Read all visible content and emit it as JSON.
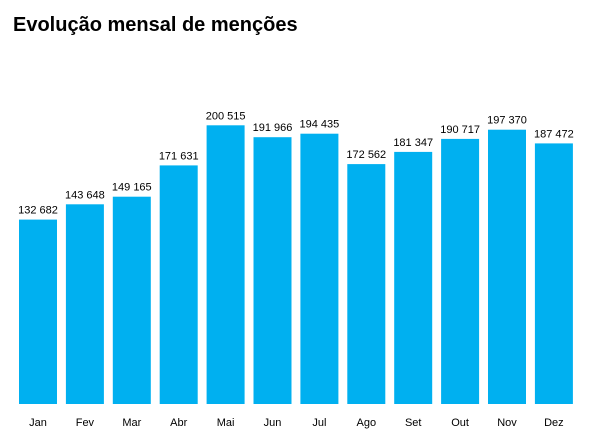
{
  "chart_data": {
    "type": "bar",
    "title": "Evolução mensal de menções",
    "categories": [
      "Jan",
      "Fev",
      "Mar",
      "Abr",
      "Mai",
      "Jun",
      "Jul",
      "Ago",
      "Set",
      "Out",
      "Nov",
      "Dez"
    ],
    "values": [
      132682,
      143648,
      149165,
      171631,
      200515,
      191966,
      194435,
      172562,
      181347,
      190717,
      197370,
      187472
    ],
    "value_labels": [
      "132 682",
      "143 648",
      "149 165",
      "171 631",
      "200 515",
      "191 966",
      "194 435",
      "172 562",
      "181 347",
      "190 717",
      "197 370",
      "187 472"
    ],
    "xlabel": "",
    "ylabel": "",
    "ylim": [
      0,
      215000
    ],
    "grid": false,
    "bar_color": "#00b0f0"
  }
}
